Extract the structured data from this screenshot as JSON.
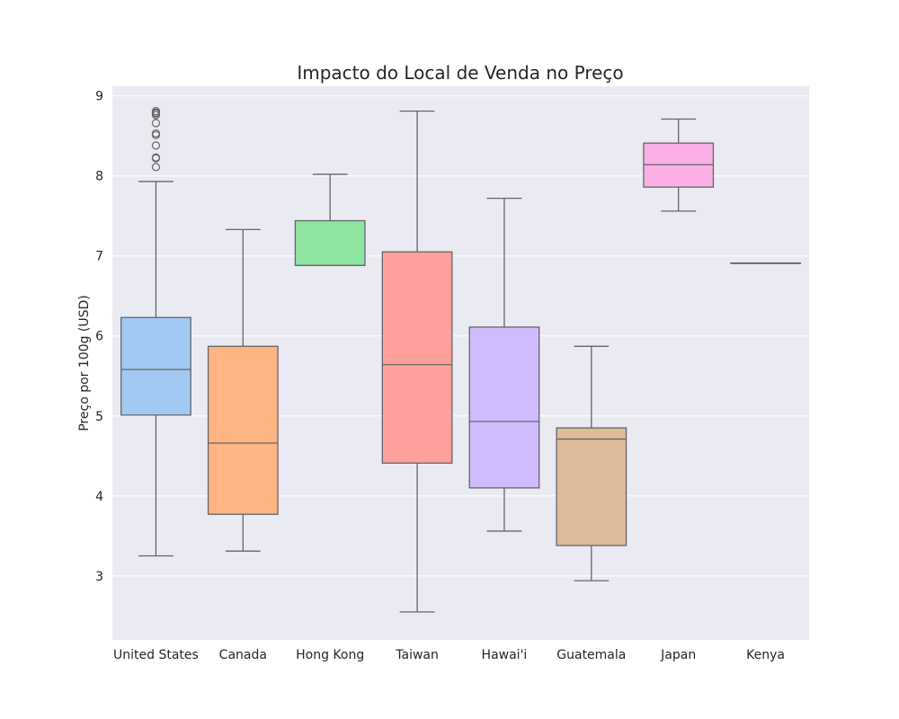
{
  "chart_data": {
    "type": "box",
    "title": "Impacto do Local de Venda no Preço",
    "xlabel": "",
    "ylabel": "Preço por 100g (USD)",
    "ylim": [
      2.2,
      9.12
    ],
    "yticks": [
      3,
      4,
      5,
      6,
      7,
      8,
      9
    ],
    "grid": true,
    "categories": [
      "United States",
      "Canada",
      "Hong Kong",
      "Taiwan",
      "Hawai'i",
      "Guatemala",
      "Japan",
      "Kenya"
    ],
    "boxes": [
      {
        "category": "United States",
        "color": "#a1c9f4",
        "whislo": 3.25,
        "q1": 5.01,
        "median": 5.58,
        "q3": 6.23,
        "whishi": 7.93,
        "fliers": [
          8.11,
          8.22,
          8.23,
          8.38,
          8.51,
          8.53,
          8.66,
          8.76,
          8.78,
          8.79,
          8.81
        ]
      },
      {
        "category": "Canada",
        "color": "#ffb482",
        "whislo": 3.31,
        "q1": 3.77,
        "median": 4.66,
        "q3": 5.87,
        "whishi": 7.33,
        "fliers": []
      },
      {
        "category": "Hong Kong",
        "color": "#8de5a1",
        "whislo": 6.88,
        "q1": 6.88,
        "median": 6.88,
        "q3": 7.44,
        "whishi": 8.02,
        "fliers": []
      },
      {
        "category": "Taiwan",
        "color": "#ff9f9b",
        "whislo": 2.55,
        "q1": 4.41,
        "median": 5.64,
        "q3": 7.05,
        "whishi": 8.81,
        "fliers": []
      },
      {
        "category": "Hawai'i",
        "color": "#d0bbff",
        "whislo": 3.56,
        "q1": 4.1,
        "median": 4.93,
        "q3": 6.11,
        "whishi": 7.72,
        "fliers": []
      },
      {
        "category": "Guatemala",
        "color": "#debb9b",
        "whislo": 2.94,
        "q1": 3.38,
        "median": 4.71,
        "q3": 4.85,
        "whishi": 5.87,
        "fliers": []
      },
      {
        "category": "Japan",
        "color": "#fab0e4",
        "whislo": 7.56,
        "q1": 7.86,
        "median": 8.14,
        "q3": 8.41,
        "whishi": 8.71,
        "fliers": []
      },
      {
        "category": "Kenya",
        "color": "#cfcfcf",
        "whislo": 6.91,
        "q1": 6.91,
        "median": 6.91,
        "q3": 6.91,
        "whishi": 6.91,
        "fliers": []
      }
    ],
    "colors": {
      "plot_background": "#eaeaf2",
      "grid": "#ffffff",
      "line": "#666666"
    }
  }
}
